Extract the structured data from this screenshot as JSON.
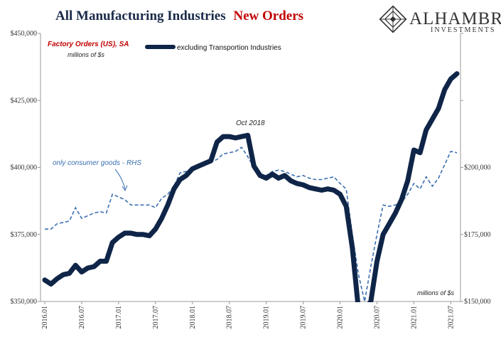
{
  "header": {
    "title_black": "All Manufacturing Industries",
    "title_red": "New Orders",
    "brand_name": "ALHAMBRA",
    "brand_sub": "INVESTMENTS"
  },
  "notes": {
    "source": "Factory Orders (US), SA",
    "units_left": "millions of $s",
    "units_right": "millions of $s",
    "peak_annotation": "Oct 2018",
    "consumer_annotation": "only consumer goods - RHS"
  },
  "colors": {
    "primary_series": "#0f2548",
    "secondary_series": "#3a6fb0",
    "title_accent": "#c00000"
  },
  "chart_data": {
    "type": "line",
    "title": "All Manufacturing Industries New Orders",
    "x": [
      "2016.01",
      "2016.02",
      "2016.03",
      "2016.04",
      "2016.05",
      "2016.06",
      "2016.07",
      "2016.08",
      "2016.09",
      "2016.10",
      "2016.11",
      "2016.12",
      "2017.01",
      "2017.02",
      "2017.03",
      "2017.04",
      "2017.05",
      "2017.06",
      "2017.07",
      "2017.08",
      "2017.09",
      "2017.10",
      "2017.11",
      "2017.12",
      "2018.01",
      "2018.02",
      "2018.03",
      "2018.04",
      "2018.05",
      "2018.06",
      "2018.07",
      "2018.08",
      "2018.09",
      "2018.10",
      "2018.11",
      "2018.12",
      "2019.01",
      "2019.02",
      "2019.03",
      "2019.04",
      "2019.05",
      "2019.06",
      "2019.07",
      "2019.08",
      "2019.09",
      "2019.10",
      "2019.11",
      "2019.12",
      "2020.01",
      "2020.02",
      "2020.03",
      "2020.04",
      "2020.05",
      "2020.06",
      "2020.07",
      "2020.08",
      "2020.09",
      "2020.10",
      "2020.11",
      "2020.12",
      "2021.01",
      "2021.02",
      "2021.03",
      "2021.04",
      "2021.05",
      "2021.06",
      "2021.07",
      "2021.08"
    ],
    "x_tick_labels": [
      "2016.01",
      "2016.07",
      "2017.01",
      "2017.07",
      "2018.01",
      "2018.07",
      "2019.01",
      "2019.07",
      "2020.01",
      "2020.07",
      "2021.01",
      "2021.07"
    ],
    "left_axis": {
      "ticks": [
        "$350,000",
        "$375,000",
        "$400,000",
        "$425,000",
        "$450,000"
      ],
      "ylim": [
        350000,
        450000
      ]
    },
    "right_axis": {
      "ticks": [
        "$150,000",
        "$175,000",
        "$200,000"
      ],
      "ylim": [
        150000,
        250000
      ]
    },
    "series": [
      {
        "name": "excluding Transportion Industries",
        "axis": "left",
        "style": "solid-thick",
        "values": [
          358000,
          356500,
          358500,
          360000,
          360500,
          363500,
          361000,
          362500,
          363000,
          365000,
          365000,
          372000,
          374000,
          375500,
          375500,
          375000,
          375000,
          374500,
          377000,
          381000,
          386000,
          392000,
          395500,
          397000,
          399500,
          400500,
          401500,
          402500,
          409500,
          411500,
          411500,
          411000,
          411500,
          412000,
          400500,
          397000,
          396000,
          397500,
          396000,
          397000,
          395000,
          394000,
          393500,
          392500,
          392000,
          391500,
          392000,
          391500,
          390000,
          385500,
          370000,
          333000,
          330000,
          350000,
          365000,
          375000,
          379000,
          383000,
          388000,
          395000,
          406500,
          405500,
          414000,
          418000,
          422000,
          429000,
          433000,
          435000
        ]
      },
      {
        "axis": "right",
        "style": "dashed",
        "values": [
          177000,
          177000,
          179000,
          179500,
          180000,
          185000,
          181000,
          182000,
          183000,
          183500,
          183000,
          190000,
          189000,
          188000,
          186000,
          186000,
          186000,
          186000,
          185000,
          188500,
          190000,
          193000,
          198000,
          198500,
          200000,
          200500,
          201500,
          202000,
          203000,
          205000,
          205500,
          206000,
          207500,
          204000,
          200000,
          197500,
          197000,
          198500,
          199000,
          198500,
          197500,
          196500,
          197000,
          196000,
          195500,
          195500,
          196000,
          196500,
          194000,
          192000,
          175000,
          160000,
          150000,
          163000,
          175000,
          186000,
          185500,
          186000,
          187000,
          190000,
          194000,
          192000,
          196500,
          193000,
          196000,
          201000,
          206000,
          205500
        ]
      }
    ],
    "grid": false,
    "legend": "top-center"
  }
}
